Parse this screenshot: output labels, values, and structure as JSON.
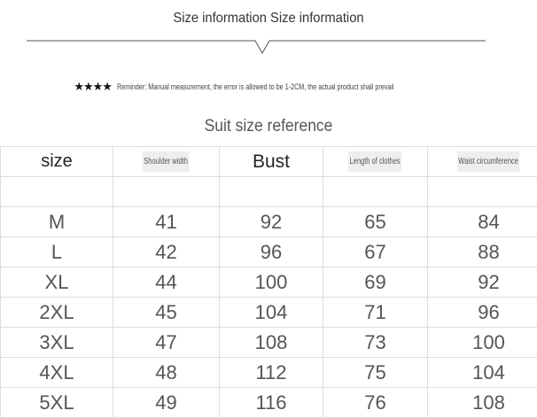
{
  "title": "Size information Size information",
  "reminder": {
    "stars": "★★★★",
    "text": "Reminder: Manual measurement, the error is allowed to be 1-2CM, the actual product shall prevail"
  },
  "subtitle": "Suit size reference",
  "table": {
    "headers": [
      "size",
      "Shoulder width",
      "Bust",
      "Length of clothes",
      "Waist circumference"
    ],
    "rows": [
      [
        "M",
        "41",
        "92",
        "65",
        "84"
      ],
      [
        "L",
        "42",
        "96",
        "67",
        "88"
      ],
      [
        "XL",
        "44",
        "100",
        "69",
        "92"
      ],
      [
        "2XL",
        "45",
        "104",
        "71",
        "96"
      ],
      [
        "3XL",
        "47",
        "108",
        "73",
        "100"
      ],
      [
        "4XL",
        "48",
        "112",
        "75",
        "104"
      ],
      [
        "5XL",
        "49",
        "116",
        "76",
        "108"
      ]
    ]
  }
}
